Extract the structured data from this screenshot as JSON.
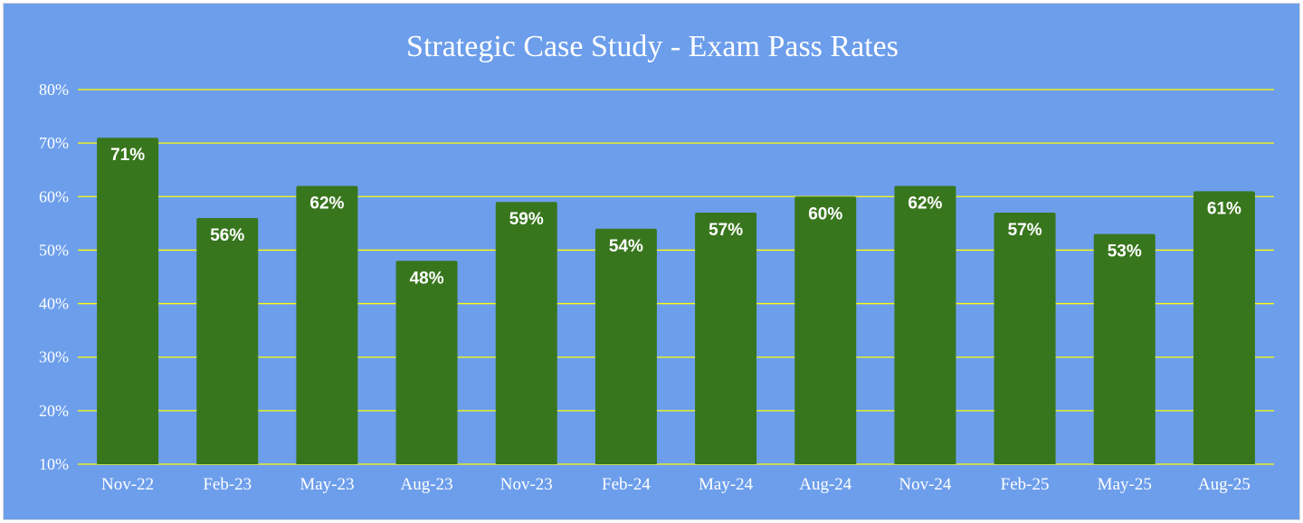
{
  "chart_data": {
    "type": "bar",
    "title": "Strategic Case Study - Exam Pass Rates",
    "xlabel": "",
    "ylabel": "",
    "categories": [
      "Nov-22",
      "Feb-23",
      "May-23",
      "Aug-23",
      "Nov-23",
      "Feb-24",
      "May-24",
      "Aug-24",
      "Nov-24",
      "Feb-25",
      "May-25",
      "Aug-25"
    ],
    "values": [
      71,
      56,
      62,
      48,
      59,
      54,
      57,
      60,
      62,
      57,
      53,
      61
    ],
    "data_labels": [
      "71%",
      "56%",
      "62%",
      "48%",
      "59%",
      "54%",
      "57%",
      "60%",
      "62%",
      "57%",
      "53%",
      "61%"
    ],
    "ylim": [
      10,
      80
    ],
    "yticks": [
      10,
      20,
      30,
      40,
      50,
      60,
      70,
      80
    ],
    "ytick_labels": [
      "10%",
      "20%",
      "30%",
      "40%",
      "50%",
      "60%",
      "70%",
      "80%"
    ],
    "grid": true,
    "legend": "none",
    "colors": {
      "background": "#6d9eeb",
      "bar": "#38761d",
      "gridline": "#ffff00",
      "text": "#ffffff"
    }
  }
}
